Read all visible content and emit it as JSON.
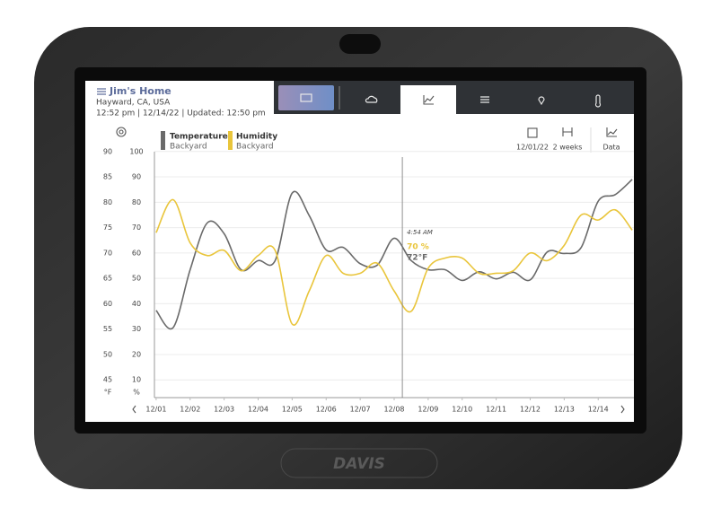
{
  "header": {
    "title": "Jim's Home",
    "location": "Hayward, CA, USA",
    "status": "12:52 pm | 12/14/22 | Updated: 12:50 pm"
  },
  "controls": {
    "date": "12/01/22",
    "range": "2 weeks",
    "view": "Data"
  },
  "brand": "DAVIS",
  "chart_data": {
    "type": "line",
    "x": [
      1,
      1.5,
      2,
      2.5,
      3,
      3.5,
      4,
      4.5,
      5,
      5.5,
      6,
      6.5,
      7,
      7.5,
      8,
      8.5,
      9,
      9.5,
      10,
      10.5,
      11,
      11.5,
      12,
      12.5,
      13,
      13.5,
      14,
      14.5,
      15
    ],
    "xlim": [
      0.95,
      15.05
    ],
    "xticks": [
      {
        "value": 1,
        "label": "12/01"
      },
      {
        "value": 2,
        "label": "12/02"
      },
      {
        "value": 3,
        "label": "12/03"
      },
      {
        "value": 4,
        "label": "12/04"
      },
      {
        "value": 5,
        "label": "12/05"
      },
      {
        "value": 6,
        "label": "12/06"
      },
      {
        "value": 7,
        "label": "12/07"
      },
      {
        "value": 8,
        "label": "12/08"
      },
      {
        "value": 9,
        "label": "12/09"
      },
      {
        "value": 10,
        "label": "12/10"
      },
      {
        "value": 11,
        "label": "12/11"
      },
      {
        "value": 12,
        "label": "12/12"
      },
      {
        "value": 13,
        "label": "12/13"
      },
      {
        "value": 14,
        "label": "12/14"
      }
    ],
    "ylim": [
      41.5,
      93.5
    ],
    "yticks": [
      45,
      50,
      55,
      60,
      65,
      70,
      75,
      80,
      85,
      90
    ],
    "y2lim": [
      3,
      107
    ],
    "y2ticks": [
      10,
      20,
      30,
      40,
      50,
      60,
      70,
      80,
      90,
      100
    ],
    "y_unit": "°F",
    "y2_unit": "%",
    "grid": true,
    "series": [
      {
        "name": "Temperature",
        "location": "Backyard",
        "color": "#6a6a6a",
        "values": [
          58.7,
          55.3,
          66.7,
          75.9,
          73.8,
          66.7,
          68.5,
          68.5,
          81.8,
          77.4,
          70.6,
          71.1,
          67.9,
          67.6,
          72.9,
          68.5,
          66.7,
          66.7,
          64.6,
          66.3,
          64.9,
          66.2,
          64.7,
          70.2,
          69.9,
          71.1,
          80.2,
          81.5,
          84.5
        ]
      },
      {
        "name": "Humidity",
        "location": "Backyard",
        "color": "#e9c53b",
        "axis": "y2",
        "values": [
          68,
          81,
          64,
          59,
          61,
          53,
          59,
          61,
          32,
          45,
          59,
          52,
          52,
          56,
          45,
          37,
          54,
          58,
          58,
          52,
          52,
          53,
          60,
          57,
          63,
          75,
          73,
          77,
          69
        ]
      }
    ],
    "cursor": {
      "x": 8.24,
      "time": "4:54 AM",
      "labels": [
        "70 %",
        "72°F"
      ]
    }
  }
}
